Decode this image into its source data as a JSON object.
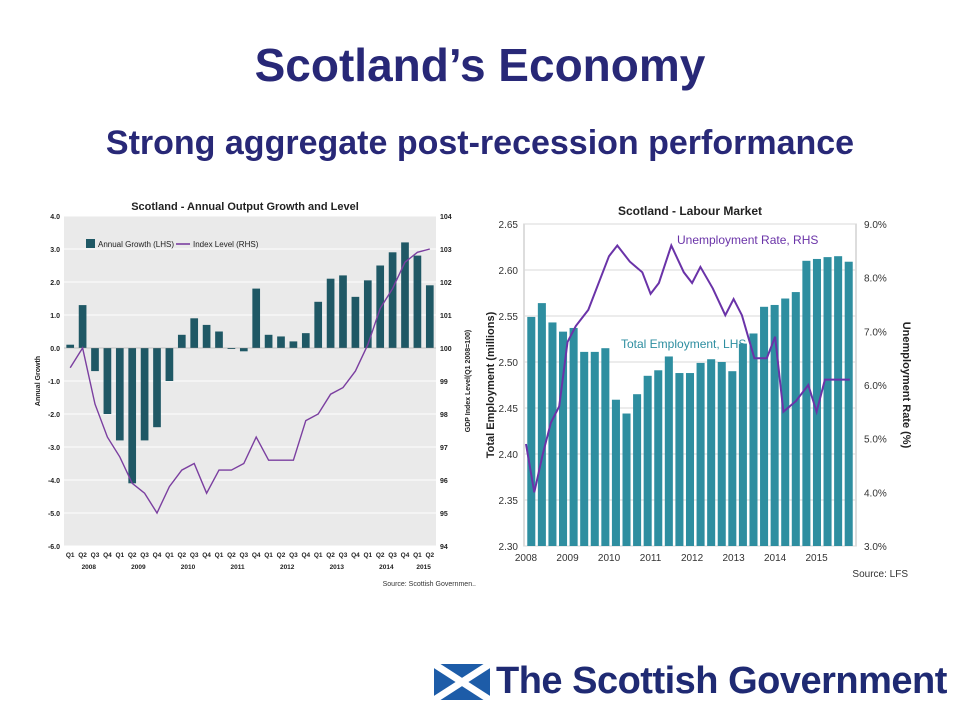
{
  "slide": {
    "title": "Scotland’s Economy",
    "subtitle": "Strong aggregate post-recession performance"
  },
  "logo": {
    "text": "The Scottish Government",
    "flag_blue": "#1d5ca8",
    "flag_white": "#ffffff"
  },
  "colors": {
    "title": "#282877",
    "left_bar": "#1f5865",
    "left_line": "#7b3fa0",
    "right_bar": "#2e8ea0",
    "right_line": "#6a33a8",
    "right_label_unemp": "#6a33a8",
    "right_label_emp": "#2e8ea0"
  },
  "chart_data": [
    {
      "type": "bar",
      "title": "Scotland - Annual Output Growth and Level",
      "ylabel": "Annual Growth",
      "y2label": "GDP Index Level(Q1 2008=100)",
      "source": "Source: Scottish Governmen..",
      "ylim": [
        -6.0,
        4.0
      ],
      "y_ticks": [
        "-6.0",
        "-5.0",
        "-4.0",
        "-3.0",
        "-2.0",
        "-1.0",
        "0.0",
        "1.0",
        "2.0",
        "3.0",
        "4.0"
      ],
      "y2lim": [
        94,
        104
      ],
      "y2_ticks": [
        "94",
        "95",
        "96",
        "97",
        "98",
        "99",
        "100",
        "101",
        "102",
        "103",
        "104"
      ],
      "categories": [
        "Q1",
        "Q2",
        "Q3",
        "Q4",
        "Q1",
        "Q2",
        "Q3",
        "Q4",
        "Q1",
        "Q2",
        "Q3",
        "Q4",
        "Q1",
        "Q2",
        "Q3",
        "Q4",
        "Q1",
        "Q2",
        "Q3",
        "Q4",
        "Q1",
        "Q2",
        "Q3",
        "Q4",
        "Q1",
        "Q2",
        "Q3",
        "Q4",
        "Q1",
        "Q2"
      ],
      "years": [
        "2008",
        "2009",
        "2010",
        "2011",
        "2012",
        "2013",
        "2014",
        "2015"
      ],
      "legend": {
        "position": "top-left",
        "bar": "Annual Growth (LHS)",
        "line": "Index Level  (RHS)"
      },
      "grid": true,
      "series": [
        {
          "name": "Annual Growth (LHS)",
          "kind": "bar",
          "values": [
            0.1,
            1.3,
            -0.7,
            -2.0,
            -2.8,
            -4.1,
            -2.8,
            -2.4,
            -1.0,
            0.4,
            0.9,
            0.7,
            0.5,
            0.0,
            -0.1,
            1.8,
            0.4,
            0.35,
            0.2,
            0.45,
            1.4,
            2.1,
            2.2,
            1.55,
            2.05,
            2.5,
            2.9,
            3.2,
            2.8,
            1.9
          ]
        },
        {
          "name": "Index Level  (RHS)",
          "kind": "line",
          "values": [
            99.4,
            100.0,
            98.3,
            97.3,
            96.7,
            95.9,
            95.6,
            95.0,
            95.8,
            96.3,
            96.5,
            95.6,
            96.3,
            96.3,
            96.5,
            97.3,
            96.6,
            96.6,
            96.6,
            97.8,
            98.0,
            98.6,
            98.8,
            99.3,
            100.1,
            101.2,
            101.8,
            102.6,
            102.9,
            103.0
          ]
        }
      ]
    },
    {
      "type": "bar",
      "title": "Scotland - Labour Market",
      "ylabel": "Total Employment (millions)",
      "y2label": "Unemployment Rate (%)",
      "source": "Source: LFS",
      "ylim": [
        2.3,
        2.65
      ],
      "y_ticks": [
        "2.30",
        "2.35",
        "2.40",
        "2.45",
        "2.50",
        "2.55",
        "2.60",
        "2.65"
      ],
      "y2lim": [
        3.0,
        9.0
      ],
      "y2_ticks": [
        "3.0%",
        "4.0%",
        "5.0%",
        "6.0%",
        "7.0%",
        "8.0%",
        "9.0%"
      ],
      "years": [
        "2008",
        "2009",
        "2010",
        "2011",
        "2012",
        "2013",
        "2014",
        "2015"
      ],
      "grid": true,
      "annotations": {
        "unemployment": "Unemployment Rate, RHS",
        "employment": "Total Employment, LHS"
      },
      "series": [
        {
          "name": "Total Employment, LHS",
          "kind": "bar",
          "values": [
            2.549,
            2.564,
            2.543,
            2.533,
            2.537,
            2.511,
            2.511,
            2.515,
            2.459,
            2.444,
            2.465,
            2.485,
            2.491,
            2.506,
            2.488,
            2.488,
            2.499,
            2.503,
            2.5,
            2.49,
            2.52,
            2.531,
            2.56,
            2.562,
            2.569,
            2.576,
            2.61,
            2.612,
            2.614,
            2.615,
            2.609
          ]
        },
        {
          "name": "Unemployment Rate, RHS",
          "kind": "line",
          "x": [
            2008.0,
            2008.2,
            2008.4,
            2008.6,
            2008.8,
            2009.0,
            2009.2,
            2009.5,
            2009.8,
            2010.0,
            2010.2,
            2010.5,
            2010.8,
            2011.0,
            2011.2,
            2011.5,
            2011.8,
            2012.0,
            2012.2,
            2012.5,
            2012.8,
            2013.0,
            2013.2,
            2013.5,
            2013.8,
            2014.0,
            2014.2,
            2014.5,
            2014.8,
            2015.0,
            2015.2,
            2015.5,
            2015.8
          ],
          "values": [
            4.9,
            4.0,
            4.7,
            5.3,
            5.6,
            6.8,
            7.1,
            7.4,
            8.0,
            8.4,
            8.6,
            8.3,
            8.1,
            7.7,
            7.9,
            8.6,
            8.1,
            7.9,
            8.2,
            7.8,
            7.3,
            7.6,
            7.3,
            6.5,
            6.5,
            6.9,
            5.5,
            5.7,
            6.0,
            5.5,
            6.1,
            6.1,
            6.1
          ]
        }
      ]
    }
  ]
}
